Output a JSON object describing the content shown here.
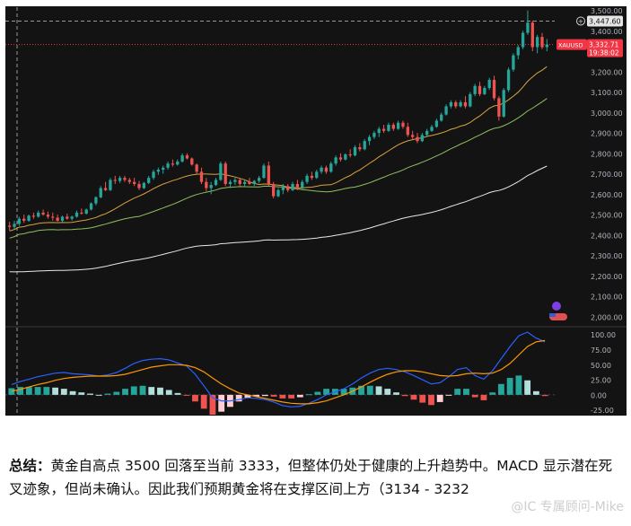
{
  "summary": {
    "label": "总结：",
    "text": "黄金自高点 3500 回落至当前 3333，但整体仍处于健康的上升趋势中。MACD 显示潜在死叉迹象，但尚未确认。因此我们预期黄金将在支撑区间上方（3134 - 3232"
  },
  "watermark": "@IC 专属顾问-Mike",
  "colors": {
    "up": "#26a69a",
    "down": "#ef5350",
    "background": "#131313",
    "price_tag": "#f23645"
  },
  "chart_data": [
    {
      "type": "candlestick",
      "symbol": "XAUUSD",
      "y_ticks": [
        "3,500.00",
        "3,400.00",
        "3,300.00",
        "3,200.00",
        "3,100.00",
        "3,000.00",
        "2,900.00",
        "2,800.00",
        "2,700.00",
        "2,600.00",
        "2,500.00",
        "2,400.00",
        "2,300.00",
        "2,200.00",
        "2,100.00",
        "2,000.00"
      ],
      "ylim": [
        1960,
        3520
      ],
      "crosshair_price": "3,447.60",
      "last_price": "3,332.71",
      "countdown": "19:38:02",
      "candles": [
        [
          2446,
          2465,
          2420,
          2440
        ],
        [
          2440,
          2470,
          2430,
          2455
        ],
        [
          2455,
          2490,
          2445,
          2480
        ],
        [
          2480,
          2500,
          2460,
          2470
        ],
        [
          2470,
          2500,
          2465,
          2495
        ],
        [
          2495,
          2510,
          2480,
          2490
        ],
        [
          2490,
          2520,
          2485,
          2510
        ],
        [
          2510,
          2525,
          2495,
          2500
        ],
        [
          2500,
          2515,
          2480,
          2490
        ],
        [
          2490,
          2510,
          2470,
          2485
        ],
        [
          2485,
          2500,
          2465,
          2470
        ],
        [
          2470,
          2495,
          2460,
          2490
        ],
        [
          2490,
          2505,
          2475,
          2480
        ],
        [
          2480,
          2495,
          2470,
          2490
        ],
        [
          2490,
          2520,
          2485,
          2510
        ],
        [
          2510,
          2530,
          2500,
          2505
        ],
        [
          2505,
          2530,
          2500,
          2525
        ],
        [
          2525,
          2560,
          2520,
          2555
        ],
        [
          2555,
          2590,
          2545,
          2585
        ],
        [
          2585,
          2640,
          2580,
          2630
        ],
        [
          2630,
          2660,
          2615,
          2620
        ],
        [
          2620,
          2680,
          2615,
          2670
        ],
        [
          2670,
          2690,
          2650,
          2665
        ],
        [
          2665,
          2690,
          2655,
          2680
        ],
        [
          2680,
          2690,
          2660,
          2670
        ],
        [
          2670,
          2680,
          2650,
          2660
        ],
        [
          2660,
          2680,
          2640,
          2650
        ],
        [
          2650,
          2665,
          2620,
          2630
        ],
        [
          2630,
          2660,
          2625,
          2655
        ],
        [
          2655,
          2690,
          2650,
          2680
        ],
        [
          2680,
          2720,
          2670,
          2710
        ],
        [
          2710,
          2730,
          2695,
          2720
        ],
        [
          2720,
          2740,
          2700,
          2730
        ],
        [
          2730,
          2760,
          2720,
          2750
        ],
        [
          2750,
          2770,
          2735,
          2745
        ],
        [
          2745,
          2770,
          2740,
          2760
        ],
        [
          2760,
          2800,
          2755,
          2790
        ],
        [
          2790,
          2800,
          2770,
          2775
        ],
        [
          2775,
          2780,
          2740,
          2745
        ],
        [
          2745,
          2750,
          2700,
          2710
        ],
        [
          2710,
          2730,
          2650,
          2660
        ],
        [
          2660,
          2680,
          2615,
          2630
        ],
        [
          2630,
          2660,
          2600,
          2645
        ],
        [
          2645,
          2680,
          2640,
          2670
        ],
        [
          2670,
          2760,
          2665,
          2750
        ],
        [
          2750,
          2760,
          2640,
          2650
        ],
        [
          2650,
          2670,
          2630,
          2660
        ],
        [
          2660,
          2680,
          2645,
          2670
        ],
        [
          2670,
          2680,
          2640,
          2650
        ],
        [
          2650,
          2670,
          2640,
          2660
        ],
        [
          2660,
          2680,
          2645,
          2650
        ],
        [
          2650,
          2670,
          2640,
          2665
        ],
        [
          2665,
          2690,
          2655,
          2680
        ],
        [
          2680,
          2750,
          2675,
          2740
        ],
        [
          2740,
          2760,
          2640,
          2650
        ],
        [
          2650,
          2660,
          2580,
          2590
        ],
        [
          2590,
          2630,
          2585,
          2620
        ],
        [
          2620,
          2650,
          2600,
          2640
        ],
        [
          2640,
          2650,
          2610,
          2620
        ],
        [
          2620,
          2660,
          2615,
          2650
        ],
        [
          2650,
          2670,
          2620,
          2630
        ],
        [
          2630,
          2670,
          2625,
          2660
        ],
        [
          2660,
          2700,
          2650,
          2690
        ],
        [
          2690,
          2710,
          2670,
          2680
        ],
        [
          2680,
          2720,
          2675,
          2710
        ],
        [
          2710,
          2740,
          2700,
          2730
        ],
        [
          2730,
          2740,
          2700,
          2710
        ],
        [
          2710,
          2760,
          2705,
          2750
        ],
        [
          2750,
          2790,
          2740,
          2780
        ],
        [
          2780,
          2800,
          2760,
          2770
        ],
        [
          2770,
          2800,
          2765,
          2795
        ],
        [
          2795,
          2820,
          2780,
          2790
        ],
        [
          2790,
          2840,
          2785,
          2830
        ],
        [
          2830,
          2850,
          2810,
          2820
        ],
        [
          2820,
          2870,
          2815,
          2860
        ],
        [
          2860,
          2890,
          2840,
          2880
        ],
        [
          2880,
          2910,
          2870,
          2900
        ],
        [
          2900,
          2930,
          2880,
          2920
        ],
        [
          2920,
          2940,
          2900,
          2910
        ],
        [
          2910,
          2950,
          2905,
          2940
        ],
        [
          2940,
          2950,
          2910,
          2920
        ],
        [
          2920,
          2960,
          2915,
          2950
        ],
        [
          2950,
          2960,
          2920,
          2930
        ],
        [
          2930,
          2950,
          2880,
          2890
        ],
        [
          2890,
          2910,
          2870,
          2880
        ],
        [
          2880,
          2900,
          2850,
          2860
        ],
        [
          2860,
          2900,
          2855,
          2890
        ],
        [
          2890,
          2920,
          2880,
          2910
        ],
        [
          2910,
          2940,
          2905,
          2930
        ],
        [
          2930,
          2970,
          2925,
          2960
        ],
        [
          2960,
          3000,
          2955,
          2990
        ],
        [
          2990,
          3040,
          2985,
          3030
        ],
        [
          3030,
          3060,
          3020,
          3050
        ],
        [
          3050,
          3060,
          3020,
          3030
        ],
        [
          3030,
          3060,
          3025,
          3050
        ],
        [
          3050,
          3080,
          3020,
          3030
        ],
        [
          3030,
          3100,
          3025,
          3090
        ],
        [
          3090,
          3140,
          3080,
          3130
        ],
        [
          3130,
          3150,
          3080,
          3090
        ],
        [
          3090,
          3130,
          3085,
          3120
        ],
        [
          3120,
          3170,
          3110,
          3160
        ],
        [
          3160,
          3180,
          3060,
          3070
        ],
        [
          3070,
          3080,
          2960,
          2980
        ],
        [
          2980,
          3120,
          2975,
          3110
        ],
        [
          3110,
          3220,
          3100,
          3210
        ],
        [
          3210,
          3290,
          3200,
          3280
        ],
        [
          3280,
          3330,
          3260,
          3320
        ],
        [
          3320,
          3400,
          3310,
          3390
        ],
        [
          3390,
          3500,
          3380,
          3440
        ],
        [
          3440,
          3450,
          3300,
          3320
        ],
        [
          3320,
          3380,
          3290,
          3370
        ],
        [
          3370,
          3390,
          3310,
          3320
        ],
        [
          3320,
          3360,
          3300,
          3333
        ]
      ],
      "macd_y_ticks": [
        "100.00",
        "75.00",
        "50.00",
        "25.00",
        "0.00",
        "-25.00"
      ],
      "macd_ylim": [
        -30,
        110
      ],
      "macd_line": [
        17,
        22,
        26,
        30,
        33,
        36,
        37,
        35,
        34,
        33,
        31,
        33,
        37,
        44,
        52,
        57,
        59,
        60,
        58,
        53,
        48,
        34,
        15,
        -5,
        -10,
        -10,
        -8,
        -5,
        -6,
        -8,
        -12,
        -18,
        -20,
        -19,
        -14,
        -8,
        0,
        5,
        10,
        18,
        28,
        36,
        42,
        44,
        42,
        38,
        32,
        25,
        18,
        20,
        30,
        42,
        45,
        32,
        26,
        40,
        60,
        80,
        98,
        104,
        94,
        88
      ],
      "signal_line": [
        6,
        9,
        13,
        17,
        20,
        24,
        27,
        29,
        30,
        31,
        31,
        31,
        32,
        34,
        38,
        42,
        46,
        48,
        50,
        50,
        49,
        45,
        38,
        28,
        18,
        10,
        3,
        0,
        -3,
        -6,
        -9,
        -12,
        -14,
        -15,
        -15,
        -13,
        -10,
        -5,
        0,
        6,
        13,
        21,
        28,
        34,
        38,
        40,
        40,
        38,
        35,
        32,
        31,
        32,
        35,
        36,
        35,
        36,
        42,
        52,
        66,
        80,
        88,
        90
      ],
      "histogram": [
        11,
        13,
        13,
        13,
        13,
        12,
        10,
        6,
        4,
        2,
        0,
        2,
        5,
        10,
        14,
        15,
        13,
        12,
        8,
        3,
        -1,
        -11,
        -23,
        -33,
        -28,
        -20,
        -11,
        -5,
        -3,
        -2,
        -3,
        -6,
        -6,
        -4,
        1,
        5,
        10,
        10,
        10,
        12,
        15,
        15,
        14,
        10,
        4,
        -2,
        -8,
        -13,
        -17,
        -12,
        -1,
        10,
        10,
        -4,
        -9,
        4,
        18,
        28,
        32,
        24,
        6,
        -2
      ]
    }
  ]
}
